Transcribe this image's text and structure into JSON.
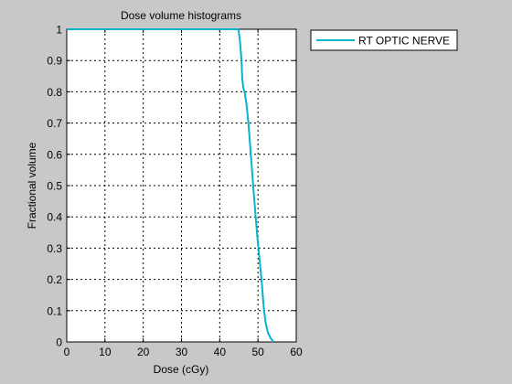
{
  "chart_data": {
    "type": "line",
    "title": "Dose volume histograms",
    "xlabel": "Dose (cGy)",
    "ylabel": "Fractional volume",
    "xlim": [
      0,
      60
    ],
    "ylim": [
      0,
      1
    ],
    "xticks": [
      "0",
      "10",
      "20",
      "30",
      "40",
      "50",
      "60"
    ],
    "yticks": [
      "0",
      "0.1",
      "0.2",
      "0.3",
      "0.4",
      "0.5",
      "0.6",
      "0.7",
      "0.8",
      "0.9",
      "1"
    ],
    "grid": true,
    "legend_position": "outside-top-right",
    "series": [
      {
        "name": "RT OPTIC NERVE",
        "color": "#00b4d2",
        "x": [
          0,
          44.9,
          45.3,
          45.7,
          45.9,
          46.2,
          46.5,
          47.0,
          47.5,
          48.0,
          48.5,
          49.0,
          49.4,
          49.8,
          50.2,
          50.6,
          51.0,
          51.3,
          51.6,
          51.9,
          52.2,
          52.6,
          53.0,
          53.4,
          53.8,
          54.0
        ],
        "y": [
          1.0,
          1.0,
          0.96,
          0.9,
          0.84,
          0.81,
          0.8,
          0.76,
          0.7,
          0.62,
          0.54,
          0.46,
          0.4,
          0.34,
          0.29,
          0.24,
          0.19,
          0.14,
          0.1,
          0.07,
          0.05,
          0.03,
          0.02,
          0.01,
          0.005,
          0.0
        ]
      }
    ]
  }
}
